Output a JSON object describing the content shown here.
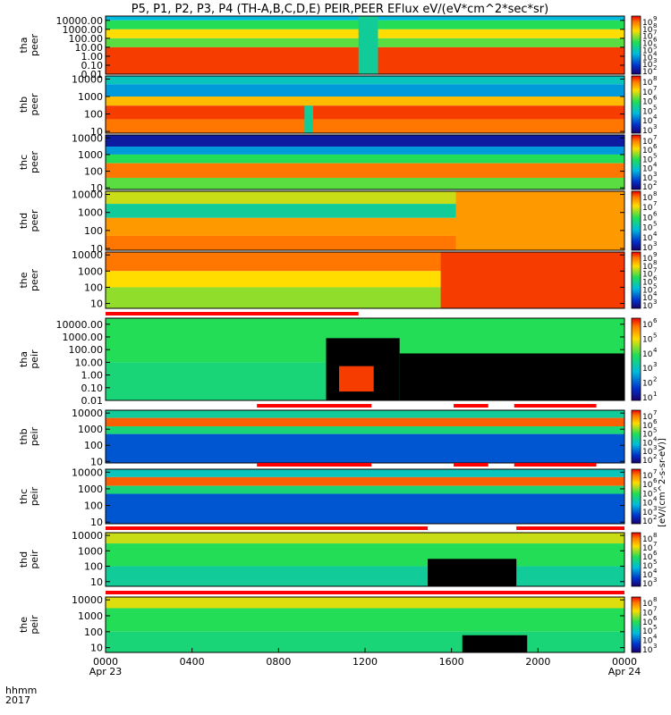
{
  "title": "P5, P1, P2, P3, P4 (TH-A,B,C,D,E) PEIR,PEER EFlux eV/(eV*cm^2*sec*sr)",
  "x_axis": {
    "label_line1": "hhmm",
    "label_line2": "2017",
    "ticks": [
      {
        "t": 0,
        "label": "0000",
        "sub": "Apr 23"
      },
      {
        "t": 4,
        "label": "0400",
        "sub": ""
      },
      {
        "t": 8,
        "label": "0800",
        "sub": ""
      },
      {
        "t": 12,
        "label": "1200",
        "sub": ""
      },
      {
        "t": 16,
        "label": "1600",
        "sub": ""
      },
      {
        "t": 20,
        "label": "2000",
        "sub": ""
      },
      {
        "t": 24,
        "label": "0000",
        "sub": "Apr 24"
      }
    ]
  },
  "colorbar_units": "[eV/(cm^2-s-sr-eV)]",
  "colors": {
    "spectrum_low": "#0033cc",
    "spectrum_mid": "#22dd55",
    "spectrum_high": "#ffdd00",
    "spectrum_max": "#ee2200",
    "no_data": "#000000",
    "flag_bar": "#ff0000"
  },
  "chart_data": [
    {
      "type": "heatmap",
      "probe": "tha",
      "species": "peer",
      "ylabel_line1": "tha",
      "ylabel_line2": "peer",
      "ylim": [
        0.01,
        30000
      ],
      "log_y": true,
      "yticks": [
        {
          "v": 10000,
          "label": "10000.00"
        },
        {
          "v": 1000,
          "label": "1000.00"
        },
        {
          "v": 100,
          "label": "100.00"
        },
        {
          "v": 10,
          "label": "10.00"
        },
        {
          "v": 1,
          "label": "1.00"
        },
        {
          "v": 0.1,
          "label": "0.10"
        },
        {
          "v": 0.01,
          "label": "0.01"
        }
      ],
      "colorbar_ticks": [
        {
          "exp": 9,
          "label": "10"
        },
        {
          "exp": 8,
          "label": "10"
        },
        {
          "exp": 7,
          "label": "10"
        },
        {
          "exp": 6,
          "label": "10"
        },
        {
          "exp": 5,
          "label": "10"
        },
        {
          "exp": 4,
          "label": "10"
        },
        {
          "exp": 3,
          "label": "10"
        },
        {
          "exp": 2,
          "label": "10"
        }
      ],
      "bands": [
        {
          "low": 10000,
          "high": 30000,
          "level": 0.35
        },
        {
          "low": 1000,
          "high": 10000,
          "level": 0.55
        },
        {
          "low": 100,
          "high": 1000,
          "level": 0.75
        },
        {
          "low": 10,
          "high": 100,
          "level": 0.6
        },
        {
          "low": 0.01,
          "high": 10,
          "level": 0.95
        }
      ],
      "features": [
        {
          "t0": 11.7,
          "t1": 12.6,
          "low": 0.01,
          "high": 30000,
          "level": 0.45
        }
      ],
      "flags": []
    },
    {
      "type": "heatmap",
      "probe": "thb",
      "species": "peer",
      "ylabel_line1": "thb",
      "ylabel_line2": "peer",
      "ylim": [
        8,
        15000
      ],
      "log_y": true,
      "yticks": [
        {
          "v": 10000,
          "label": "10000"
        },
        {
          "v": 1000,
          "label": "1000"
        },
        {
          "v": 100,
          "label": "100"
        },
        {
          "v": 10,
          "label": "10"
        }
      ],
      "colorbar_ticks": [
        {
          "exp": 8,
          "label": "10"
        },
        {
          "exp": 7,
          "label": "10"
        },
        {
          "exp": 6,
          "label": "10"
        },
        {
          "exp": 5,
          "label": "10"
        },
        {
          "exp": 4,
          "label": "10"
        },
        {
          "exp": 3,
          "label": "10"
        }
      ],
      "bands": [
        {
          "low": 5000,
          "high": 15000,
          "level": 0.4
        },
        {
          "low": 1000,
          "high": 5000,
          "level": 0.3
        },
        {
          "low": 300,
          "high": 1000,
          "level": 0.8
        },
        {
          "low": 50,
          "high": 300,
          "level": 0.95
        },
        {
          "low": 8,
          "high": 50,
          "level": 0.9
        }
      ],
      "features": [
        {
          "t0": 9.2,
          "t1": 9.6,
          "low": 8,
          "high": 300,
          "level": 0.45
        }
      ],
      "flags": []
    },
    {
      "type": "heatmap",
      "probe": "thc",
      "species": "peer",
      "ylabel_line1": "thc",
      "ylabel_line2": "peer",
      "ylim": [
        8,
        15000
      ],
      "log_y": true,
      "yticks": [
        {
          "v": 10000,
          "label": "10000"
        },
        {
          "v": 1000,
          "label": "1000"
        },
        {
          "v": 100,
          "label": "100"
        },
        {
          "v": 10,
          "label": "10"
        }
      ],
      "colorbar_ticks": [
        {
          "exp": 7,
          "label": "10"
        },
        {
          "exp": 6,
          "label": "10"
        },
        {
          "exp": 5,
          "label": "10"
        },
        {
          "exp": 4,
          "label": "10"
        },
        {
          "exp": 3,
          "label": "10"
        },
        {
          "exp": 2,
          "label": "10"
        }
      ],
      "bands": [
        {
          "low": 3000,
          "high": 15000,
          "level": 0.08
        },
        {
          "low": 1000,
          "high": 3000,
          "level": 0.3
        },
        {
          "low": 300,
          "high": 1000,
          "level": 0.55
        },
        {
          "low": 40,
          "high": 300,
          "level": 0.9
        },
        {
          "low": 8,
          "high": 40,
          "level": 0.6
        }
      ],
      "features": [],
      "flags": []
    },
    {
      "type": "heatmap",
      "probe": "thd",
      "species": "peer",
      "ylabel_line1": "thd",
      "ylabel_line2": "peer",
      "ylim": [
        8,
        15000
      ],
      "log_y": true,
      "yticks": [
        {
          "v": 10000,
          "label": "10000"
        },
        {
          "v": 1000,
          "label": "1000"
        },
        {
          "v": 100,
          "label": "100"
        },
        {
          "v": 10,
          "label": "10"
        }
      ],
      "colorbar_ticks": [
        {
          "exp": 8,
          "label": "10"
        },
        {
          "exp": 7,
          "label": "10"
        },
        {
          "exp": 6,
          "label": "10"
        },
        {
          "exp": 5,
          "label": "10"
        },
        {
          "exp": 4,
          "label": "10"
        },
        {
          "exp": 3,
          "label": "10"
        }
      ],
      "bands": [
        {
          "low": 3000,
          "high": 15000,
          "level": 0.7
        },
        {
          "low": 500,
          "high": 3000,
          "level": 0.45
        },
        {
          "low": 50,
          "high": 500,
          "level": 0.85
        },
        {
          "low": 8,
          "high": 50,
          "level": 0.9
        }
      ],
      "features": [
        {
          "t0": 16.2,
          "t1": 24,
          "low": 8,
          "high": 15000,
          "level": 0.85
        }
      ],
      "flags": []
    },
    {
      "type": "heatmap",
      "probe": "the",
      "species": "peer",
      "ylabel_line1": "the",
      "ylabel_line2": "peer",
      "ylim": [
        5,
        15000
      ],
      "log_y": true,
      "yticks": [
        {
          "v": 10000,
          "label": "10000"
        },
        {
          "v": 1000,
          "label": "1000"
        },
        {
          "v": 100,
          "label": "100"
        },
        {
          "v": 10,
          "label": "10"
        }
      ],
      "colorbar_ticks": [
        {
          "exp": 9,
          "label": "10"
        },
        {
          "exp": 8,
          "label": "10"
        },
        {
          "exp": 7,
          "label": "10"
        },
        {
          "exp": 6,
          "label": "10"
        },
        {
          "exp": 5,
          "label": "10"
        },
        {
          "exp": 4,
          "label": "10"
        },
        {
          "exp": 3,
          "label": "10"
        }
      ],
      "bands": [
        {
          "low": 1000,
          "high": 15000,
          "level": 0.9
        },
        {
          "low": 100,
          "high": 1000,
          "level": 0.75
        },
        {
          "low": 5,
          "high": 100,
          "level": 0.65
        }
      ],
      "features": [
        {
          "t0": 15.5,
          "t1": 24,
          "low": 5,
          "high": 15000,
          "level": 0.95
        }
      ],
      "flags": []
    },
    {
      "type": "heatmap",
      "probe": "tha",
      "species": "peir",
      "ylabel_line1": "tha",
      "ylabel_line2": "peir",
      "ylim": [
        0.01,
        30000
      ],
      "log_y": true,
      "yticks": [
        {
          "v": 10000,
          "label": "10000.00"
        },
        {
          "v": 1000,
          "label": "1000.00"
        },
        {
          "v": 100,
          "label": "100.00"
        },
        {
          "v": 10,
          "label": "10.00"
        },
        {
          "v": 1,
          "label": "1.00"
        },
        {
          "v": 0.1,
          "label": "0.10"
        },
        {
          "v": 0.01,
          "label": "0.01"
        }
      ],
      "colorbar_ticks": [
        {
          "exp": 6,
          "label": "10"
        },
        {
          "exp": 5,
          "label": "10"
        },
        {
          "exp": 4,
          "label": "10"
        },
        {
          "exp": 3,
          "label": "10"
        },
        {
          "exp": 2,
          "label": "10"
        },
        {
          "exp": 1,
          "label": "10"
        }
      ],
      "bands": [
        {
          "low": 10,
          "high": 30000,
          "level": 0.55
        },
        {
          "low": 0.01,
          "high": 10,
          "level": 0.5
        }
      ],
      "features": [
        {
          "t0": 10.2,
          "t1": 13.6,
          "low": 0.01,
          "high": 800,
          "level": -1
        },
        {
          "t0": 13.6,
          "t1": 24,
          "low": 0.01,
          "high": 50,
          "level": -1
        },
        {
          "t0": 10.8,
          "t1": 12.4,
          "low": 0.05,
          "high": 5,
          "level": 0.95
        }
      ],
      "flags": [
        {
          "t0": 0,
          "t1": 11.7
        }
      ]
    },
    {
      "type": "heatmap",
      "probe": "thb",
      "species": "peir",
      "ylabel_line1": "thb",
      "ylabel_line2": "peir",
      "ylim": [
        8,
        15000
      ],
      "log_y": true,
      "yticks": [
        {
          "v": 10000,
          "label": "10000"
        },
        {
          "v": 1000,
          "label": "1000"
        },
        {
          "v": 100,
          "label": "100"
        },
        {
          "v": 10,
          "label": "10"
        }
      ],
      "colorbar_ticks": [
        {
          "exp": 7,
          "label": "10"
        },
        {
          "exp": 6,
          "label": "10"
        },
        {
          "exp": 5,
          "label": "10"
        },
        {
          "exp": 4,
          "label": "10"
        },
        {
          "exp": 3,
          "label": "10"
        },
        {
          "exp": 2,
          "label": "10"
        }
      ],
      "bands": [
        {
          "low": 5000,
          "high": 15000,
          "level": 0.45
        },
        {
          "low": 1500,
          "high": 5000,
          "level": 0.92
        },
        {
          "low": 500,
          "high": 1500,
          "level": 0.5
        },
        {
          "low": 8,
          "high": 500,
          "level": 0.2
        }
      ],
      "features": [],
      "flags": [
        {
          "t0": 7.0,
          "t1": 12.3
        },
        {
          "t0": 16.1,
          "t1": 17.7
        },
        {
          "t0": 18.9,
          "t1": 22.7
        }
      ]
    },
    {
      "type": "heatmap",
      "probe": "thc",
      "species": "peir",
      "ylabel_line1": "thc",
      "ylabel_line2": "peir",
      "ylim": [
        8,
        15000
      ],
      "log_y": true,
      "yticks": [
        {
          "v": 10000,
          "label": "10000"
        },
        {
          "v": 1000,
          "label": "1000"
        },
        {
          "v": 100,
          "label": "100"
        },
        {
          "v": 10,
          "label": "10"
        }
      ],
      "colorbar_ticks": [
        {
          "exp": 7,
          "label": "10"
        },
        {
          "exp": 6,
          "label": "10"
        },
        {
          "exp": 5,
          "label": "10"
        },
        {
          "exp": 4,
          "label": "10"
        },
        {
          "exp": 3,
          "label": "10"
        },
        {
          "exp": 2,
          "label": "10"
        }
      ],
      "bands": [
        {
          "low": 5000,
          "high": 15000,
          "level": 0.4
        },
        {
          "low": 1500,
          "high": 5000,
          "level": 0.92
        },
        {
          "low": 500,
          "high": 1500,
          "level": 0.5
        },
        {
          "low": 8,
          "high": 500,
          "level": 0.2
        }
      ],
      "features": [],
      "flags": [
        {
          "t0": 7.0,
          "t1": 12.3
        },
        {
          "t0": 16.1,
          "t1": 17.7
        },
        {
          "t0": 18.9,
          "t1": 22.7
        }
      ]
    },
    {
      "type": "heatmap",
      "probe": "thd",
      "species": "peir",
      "ylabel_line1": "thd",
      "ylabel_line2": "peir",
      "ylim": [
        5,
        15000
      ],
      "log_y": true,
      "yticks": [
        {
          "v": 10000,
          "label": "10000"
        },
        {
          "v": 1000,
          "label": "1000"
        },
        {
          "v": 100,
          "label": "100"
        },
        {
          "v": 10,
          "label": "10"
        }
      ],
      "colorbar_ticks": [
        {
          "exp": 8,
          "label": "10"
        },
        {
          "exp": 7,
          "label": "10"
        },
        {
          "exp": 6,
          "label": "10"
        },
        {
          "exp": 5,
          "label": "10"
        },
        {
          "exp": 4,
          "label": "10"
        },
        {
          "exp": 3,
          "label": "10"
        }
      ],
      "bands": [
        {
          "low": 3000,
          "high": 15000,
          "level": 0.7
        },
        {
          "low": 100,
          "high": 3000,
          "level": 0.55
        },
        {
          "low": 5,
          "high": 100,
          "level": 0.45
        }
      ],
      "features": [
        {
          "t0": 14.9,
          "t1": 19.0,
          "low": 5,
          "high": 300,
          "level": -1
        }
      ],
      "flags": [
        {
          "t0": 0,
          "t1": 14.9
        },
        {
          "t0": 19.0,
          "t1": 24
        }
      ]
    },
    {
      "type": "heatmap",
      "probe": "the",
      "species": "peir",
      "ylabel_line1": "the",
      "ylabel_line2": "peir",
      "ylim": [
        5,
        15000
      ],
      "log_y": true,
      "yticks": [
        {
          "v": 10000,
          "label": "10000"
        },
        {
          "v": 1000,
          "label": "1000"
        },
        {
          "v": 100,
          "label": "100"
        },
        {
          "v": 10,
          "label": "10"
        }
      ],
      "colorbar_ticks": [
        {
          "exp": 8,
          "label": "10"
        },
        {
          "exp": 7,
          "label": "10"
        },
        {
          "exp": 6,
          "label": "10"
        },
        {
          "exp": 5,
          "label": "10"
        },
        {
          "exp": 4,
          "label": "10"
        },
        {
          "exp": 3,
          "label": "10"
        }
      ],
      "bands": [
        {
          "low": 3000,
          "high": 15000,
          "level": 0.72
        },
        {
          "low": 100,
          "high": 3000,
          "level": 0.55
        },
        {
          "low": 5,
          "high": 100,
          "level": 0.5
        }
      ],
      "features": [
        {
          "t0": 16.5,
          "t1": 19.5,
          "low": 5,
          "high": 60,
          "level": -1
        }
      ],
      "flags": [
        {
          "t0": 0,
          "t1": 24
        }
      ]
    }
  ]
}
